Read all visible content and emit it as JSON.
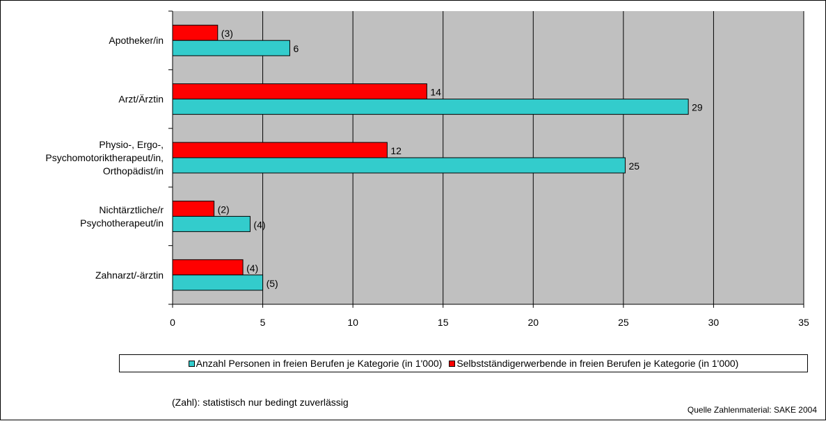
{
  "chart_data": {
    "type": "bar",
    "orientation": "horizontal",
    "categories": [
      "Apotheker/in",
      "Arzt/Ärztin",
      "Physio-, Ergo-,\nPsychomotoriktherapeut/in,\nOrthopädist/in",
      "Nichtärztliche/r\nPsychotherapeut/in",
      "Zahnarzt/-ärztin"
    ],
    "series": [
      {
        "name": "Selbstständigerwerbende in freien Berufen je Kategorie (in 1'000)",
        "color": "#ff0000",
        "values": [
          2.5,
          14.1,
          11.9,
          2.3,
          3.9
        ],
        "labels": [
          "(3)",
          "14",
          "12",
          "(2)",
          "(4)"
        ]
      },
      {
        "name": "Anzahl Personen in freien Berufen je Kategorie (in 1'000)",
        "color": "#33cccc",
        "values": [
          6.5,
          28.6,
          25.1,
          4.3,
          5.0
        ],
        "labels": [
          "6",
          "29",
          "25",
          "(4)",
          "(5)"
        ]
      }
    ],
    "xlim": [
      0,
      35
    ],
    "xticks": [
      0,
      5,
      10,
      15,
      20,
      25,
      30,
      35
    ],
    "grid": true,
    "plot_background": "#c0c0c0",
    "legend_position": "bottom",
    "legend_order": [
      1,
      0
    ]
  },
  "footnote": "(Zahl): statistisch nur bedingt zuverlässig",
  "source": "Quelle Zahlenmaterial: SAKE 2004"
}
